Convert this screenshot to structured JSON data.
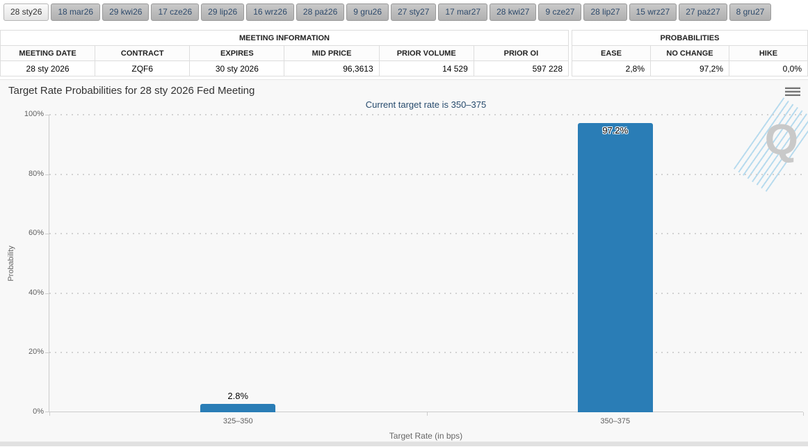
{
  "tabs": {
    "items": [
      {
        "label": "28 sty26",
        "selected": true
      },
      {
        "label": "18 mar26",
        "selected": false
      },
      {
        "label": "29 kwi26",
        "selected": false
      },
      {
        "label": "17 cze26",
        "selected": false
      },
      {
        "label": "29 lip26",
        "selected": false
      },
      {
        "label": "16 wrz26",
        "selected": false
      },
      {
        "label": "28 paź26",
        "selected": false
      },
      {
        "label": "9 gru26",
        "selected": false
      },
      {
        "label": "27 sty27",
        "selected": false
      },
      {
        "label": "17 mar27",
        "selected": false
      },
      {
        "label": "28 kwi27",
        "selected": false
      },
      {
        "label": "9 cze27",
        "selected": false
      },
      {
        "label": "28 lip27",
        "selected": false
      },
      {
        "label": "15 wrz27",
        "selected": false
      },
      {
        "label": "27 paź27",
        "selected": false
      },
      {
        "label": "8 gru27",
        "selected": false
      }
    ]
  },
  "meeting_info": {
    "title": "MEETING INFORMATION",
    "columns": [
      "MEETING DATE",
      "CONTRACT",
      "EXPIRES",
      "MID PRICE",
      "PRIOR VOLUME",
      "PRIOR OI"
    ],
    "values": [
      "28 sty 2026",
      "ZQF6",
      "30 sty 2026",
      "96,3613",
      "14 529",
      "597 228"
    ]
  },
  "probabilities": {
    "title": "PROBABILITIES",
    "columns": [
      "EASE",
      "NO CHANGE",
      "HIKE"
    ],
    "values": [
      "2,8%",
      "97,2%",
      "0,0%"
    ]
  },
  "chart_data": {
    "type": "bar",
    "title": "Target Rate Probabilities for 28 sty 2026 Fed Meeting",
    "subtitle": "Current target rate is 350–375",
    "categories": [
      "325–350",
      "350–375"
    ],
    "values": [
      2.8,
      97.2
    ],
    "value_labels": [
      "2.8%",
      "97.2%"
    ],
    "xlabel": "Target Rate (in bps)",
    "ylabel": "Probability",
    "ylim": [
      0,
      100
    ],
    "yticks": [
      {
        "value": 0,
        "label": "0%"
      },
      {
        "value": 20,
        "label": "20%"
      },
      {
        "value": 40,
        "label": "40%"
      },
      {
        "value": 60,
        "label": "60%"
      },
      {
        "value": 80,
        "label": "80%"
      },
      {
        "value": 100,
        "label": "100%"
      }
    ],
    "grid": "dotted horizontal",
    "legend": "none",
    "bar_color": "#2a7db6",
    "watermark_letter": "Q"
  }
}
